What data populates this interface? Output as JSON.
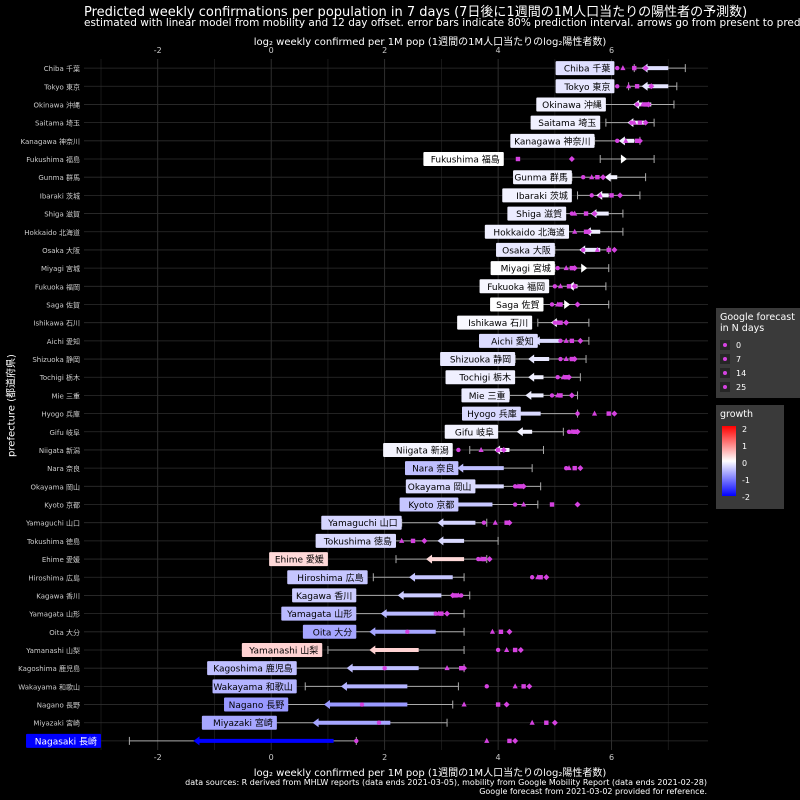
{
  "title": "Predicted weekly confirmations per population in 7 days (7日後に1週間の1M人口当たりの陽性者の予測数)",
  "subtitle": "estimated with linear model from mobility and 12 day offset. error bars indicate 80% prediction interval. arrows go from present to prediction.",
  "xlabel": "log₂ weekly confirmed per 1M pop (1週間の1M人口当たりのlog₂陽性者数)",
  "ylabel": "prefecture (都道府県)",
  "caption": [
    "data sources: R derived from MHLW reports (data ends 2021-03-05), mobility from Google Mobility Report (data ends 2021-02-28)",
    "Google forecast from 2021-03-02 provided for reference."
  ],
  "legend_forecast": {
    "title": [
      "Google forecast",
      "in N days"
    ],
    "items": [
      "0",
      "7",
      "14",
      "25"
    ]
  },
  "legend_growth": {
    "title": "growth",
    "ticks": [
      "2",
      "1",
      "0",
      "-1",
      "-2"
    ]
  },
  "colors": {
    "background": "#000000",
    "grid": "#2e2e2e",
    "forecast_marker": "#d542e0",
    "growth_low": "#0000ff",
    "growth_mid": "#ffffff",
    "growth_high": "#ff0000"
  },
  "chart_data": {
    "type": "scatter",
    "x_ticks": [
      -2,
      0,
      2,
      4,
      6
    ],
    "xlim": [
      -3.3,
      7.7
    ],
    "categories": [
      "Chiba 千葉",
      "Tokyo 東京",
      "Okinawa 沖縄",
      "Saitama 埼玉",
      "Kanagawa 神奈川",
      "Fukushima 福島",
      "Gunma 群馬",
      "Ibaraki 茨城",
      "Shiga 滋賀",
      "Hokkaido 北海道",
      "Osaka 大阪",
      "Miyagi 宮城",
      "Fukuoka 福岡",
      "Saga 佐賀",
      "Ishikawa 石川",
      "Aichi 愛知",
      "Shizuoka 静岡",
      "Tochigi 栃木",
      "Mie 三重",
      "Hyogo 兵庫",
      "Gifu 岐阜",
      "Niigata 新潟",
      "Nara 奈良",
      "Okayama 岡山",
      "Kyoto 京都",
      "Yamaguchi 山口",
      "Tokushima 徳島",
      "Ehime 愛媛",
      "Hiroshima 広島",
      "Kagawa 香川",
      "Yamagata 山形",
      "Oita 大分",
      "Yamanashi 山梨",
      "Kagoshima 鹿児島",
      "Wakayama 和歌山",
      "Nagano 長野",
      "Miyazaki 宮崎",
      "Nagasaki 長崎"
    ],
    "label_ends": [
      6.05,
      6.05,
      5.9,
      5.8,
      5.7,
      4.1,
      5.3,
      5.3,
      5.2,
      5.25,
      5.0,
      5.0,
      4.9,
      4.8,
      4.6,
      4.7,
      4.3,
      4.3,
      4.2,
      4.4,
      4.0,
      3.2,
      3.3,
      3.6,
      3.3,
      2.3,
      2.2,
      1.0,
      1.7,
      1.5,
      1.5,
      1.5,
      0.9,
      0.45,
      0.45,
      0.3,
      0.1,
      -3.0
    ],
    "present": [
      7.0,
      7.0,
      6.7,
      6.6,
      6.4,
      6.2,
      6.1,
      5.95,
      5.95,
      5.8,
      5.8,
      5.5,
      5.4,
      5.2,
      5.1,
      5.1,
      4.9,
      4.8,
      4.8,
      4.75,
      4.6,
      4.2,
      4.1,
      4.1,
      3.9,
      3.6,
      3.4,
      3.4,
      3.2,
      3.0,
      2.9,
      2.9,
      2.6,
      2.6,
      2.4,
      2.4,
      2.1,
      1.1
    ],
    "prediction": [
      6.6,
      6.6,
      6.45,
      6.35,
      6.2,
      6.2,
      5.95,
      5.8,
      5.7,
      5.6,
      5.5,
      5.5,
      5.3,
      5.2,
      5.0,
      4.7,
      4.6,
      4.6,
      4.55,
      4.3,
      4.4,
      4.0,
      3.35,
      3.5,
      3.2,
      3.0,
      3.0,
      2.8,
      2.5,
      2.3,
      2.0,
      1.8,
      1.8,
      1.4,
      1.3,
      1.0,
      0.8,
      -1.3
    ],
    "pi_low": [
      6.4,
      6.3,
      5.85,
      5.9,
      5.7,
      5.8,
      5.3,
      5.4,
      5.1,
      4.95,
      5.0,
      5.0,
      4.8,
      4.6,
      4.7,
      4.3,
      4.3,
      4.2,
      4.2,
      3.8,
      3.8,
      3.5,
      2.8,
      2.6,
      2.4,
      2.3,
      2.0,
      2.2,
      1.8,
      1.3,
      1.1,
      1.1,
      1.0,
      0.4,
      0.6,
      0.2,
      -0.2,
      -2.5
    ],
    "pi_high": [
      7.3,
      7.15,
      7.1,
      6.75,
      6.5,
      6.75,
      6.6,
      6.5,
      6.2,
      6.2,
      5.95,
      5.95,
      5.9,
      5.95,
      5.6,
      5.6,
      5.55,
      5.45,
      5.4,
      5.4,
      5.15,
      4.8,
      4.6,
      4.75,
      4.7,
      3.8,
      4.0,
      3.8,
      3.4,
      3.5,
      3.4,
      3.4,
      3.4,
      3.4,
      3.3,
      3.2,
      3.1,
      1.5
    ],
    "growth": [
      -0.25,
      -0.2,
      -0.12,
      -0.12,
      -0.12,
      0,
      -0.1,
      -0.1,
      -0.15,
      -0.12,
      -0.18,
      0,
      -0.06,
      0,
      -0.05,
      -0.28,
      -0.18,
      -0.12,
      -0.16,
      -0.3,
      -0.1,
      -0.08,
      -0.5,
      -0.3,
      -0.45,
      -0.33,
      -0.3,
      0.3,
      -0.45,
      -0.4,
      -0.55,
      -0.7,
      0.35,
      -0.5,
      -0.6,
      -0.8,
      -0.7,
      -2.0
    ],
    "forecast": [
      [
        6.1,
        6.2,
        6.4,
        6.6
      ],
      [
        6.1,
        6.3,
        6.45,
        6.7
      ],
      [
        6.45,
        6.55,
        6.6,
        6.65
      ],
      [
        6.35,
        6.4,
        6.5,
        6.6
      ],
      [
        6.1,
        6.25,
        6.45,
        6.5
      ],
      [
        3.85,
        4.05,
        4.35,
        5.3
      ],
      [
        5.5,
        5.65,
        5.75,
        5.85
      ],
      [
        5.65,
        5.8,
        6.0,
        6.15
      ],
      [
        5.3,
        5.35,
        5.55,
        5.7
      ],
      [
        5.2,
        5.35,
        5.55,
        5.6
      ],
      [
        5.5,
        5.75,
        5.95,
        6.05
      ],
      [
        5.05,
        5.2,
        5.3,
        5.35
      ],
      [
        5.0,
        5.1,
        5.25,
        5.35
      ],
      [
        4.95,
        5.05,
        5.1,
        5.4
      ],
      [
        5.0,
        5.05,
        5.1,
        5.2
      ],
      [
        5.1,
        5.2,
        5.3,
        5.45
      ],
      [
        5.1,
        5.2,
        5.3,
        5.35
      ],
      [
        5.05,
        5.15,
        5.2,
        5.25
      ],
      [
        4.95,
        5.05,
        5.1,
        5.3
      ],
      [
        5.4,
        5.7,
        5.95,
        6.05
      ],
      [
        5.25,
        5.3,
        5.35,
        5.4
      ],
      [
        3.3,
        3.7,
        4.0,
        4.1
      ],
      [
        5.2,
        5.25,
        5.35,
        5.45
      ],
      [
        4.3,
        4.35,
        4.4,
        4.45
      ],
      [
        4.3,
        4.45,
        4.95,
        5.4
      ],
      [
        3.75,
        3.95,
        4.15,
        4.2
      ],
      [
        2.1,
        2.3,
        2.5,
        2.7
      ],
      [
        3.65,
        3.7,
        3.75,
        3.85
      ],
      [
        4.6,
        4.7,
        4.75,
        4.85
      ],
      [
        3.35,
        3.3,
        3.25,
        3.2
      ],
      [
        2.9,
        2.95,
        3.0,
        3.1
      ],
      [
        2.4,
        3.9,
        4.05,
        4.2
      ],
      [
        4.0,
        4.15,
        4.3,
        4.4
      ],
      [
        2.0,
        3.1,
        3.35,
        3.4
      ],
      [
        3.8,
        4.3,
        4.45,
        4.55
      ],
      [
        1.6,
        3.4,
        4.0,
        4.15
      ],
      [
        1.9,
        4.6,
        4.85,
        5.0
      ],
      [
        1.5,
        3.8,
        4.2,
        4.3
      ]
    ]
  }
}
